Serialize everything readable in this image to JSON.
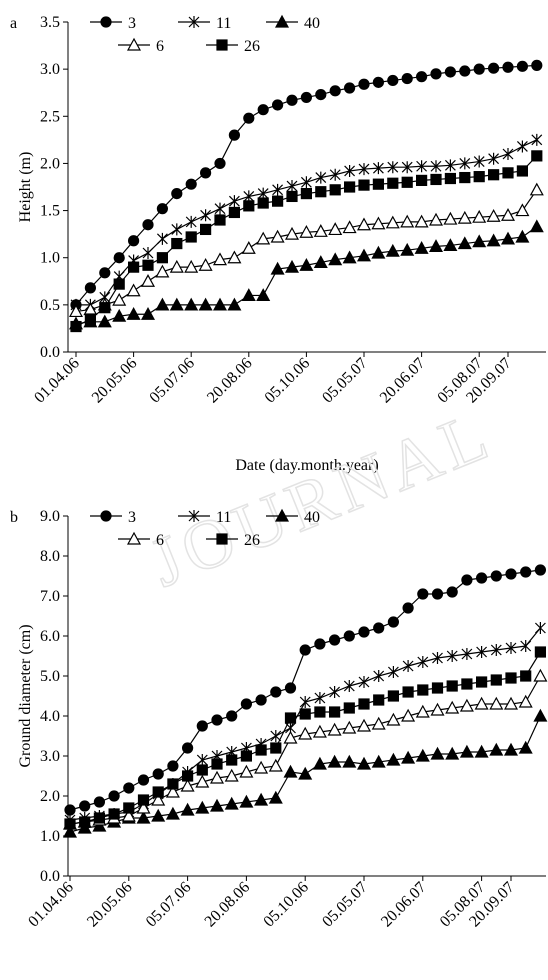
{
  "chart_data": [
    {
      "type": "line",
      "panel_label": "a",
      "x_label": "Date (day.month.year)",
      "y_label": "Height (m)",
      "categories": [
        "01.04.06",
        null,
        null,
        null,
        "20.05.06",
        null,
        null,
        null,
        "05.07.06",
        null,
        null,
        null,
        "20.08.06",
        null,
        null,
        null,
        "05.10.06",
        null,
        null,
        null,
        "05.05.07",
        null,
        null,
        null,
        "20.06.07",
        null,
        null,
        null,
        "05.08.07",
        null,
        "20.09.07",
        null,
        null
      ],
      "ylim": [
        0,
        3.5
      ],
      "yticks": [
        {
          "value": 0,
          "label": "0.0"
        },
        {
          "value": 0.5,
          "label": "0.5"
        },
        {
          "value": 1,
          "label": "1.0"
        },
        {
          "value": 1.5,
          "label": "1.5"
        },
        {
          "value": 2,
          "label": "2.0"
        },
        {
          "value": 2.5,
          "label": "2.5"
        },
        {
          "value": 3,
          "label": "3.0"
        },
        {
          "value": 3.5,
          "label": "3.5"
        }
      ],
      "series": [
        {
          "name": "3",
          "color": "#000000",
          "marker": "circle",
          "values": [
            0.5,
            0.68,
            0.84,
            1.0,
            1.18,
            1.35,
            1.52,
            1.68,
            1.78,
            1.9,
            2.0,
            2.3,
            2.48,
            2.57,
            2.62,
            2.67,
            2.7,
            2.73,
            2.77,
            2.8,
            2.84,
            2.86,
            2.88,
            2.9,
            2.92,
            2.95,
            2.97,
            2.98,
            3.0,
            3.01,
            3.02,
            3.03,
            3.04
          ]
        },
        {
          "name": "11",
          "color": "#000000",
          "marker": "star",
          "values": [
            0.5,
            0.5,
            0.58,
            0.8,
            0.97,
            1.05,
            1.2,
            1.3,
            1.38,
            1.45,
            1.52,
            1.6,
            1.65,
            1.68,
            1.72,
            1.76,
            1.8,
            1.85,
            1.88,
            1.92,
            1.94,
            1.95,
            1.96,
            1.96,
            1.97,
            1.97,
            1.98,
            2.0,
            2.02,
            2.05,
            2.1,
            2.18,
            2.25
          ]
        },
        {
          "name": "40",
          "color": "#000000",
          "marker": "triangle",
          "values": [
            0.3,
            0.32,
            0.32,
            0.38,
            0.4,
            0.4,
            0.5,
            0.5,
            0.5,
            0.5,
            0.5,
            0.5,
            0.6,
            0.6,
            0.88,
            0.9,
            0.92,
            0.95,
            0.98,
            1.0,
            1.02,
            1.05,
            1.07,
            1.08,
            1.1,
            1.12,
            1.13,
            1.15,
            1.17,
            1.18,
            1.2,
            1.22,
            1.33
          ]
        },
        {
          "name": "6",
          "color": "#000000",
          "marker": "open-triangle",
          "values": [
            0.43,
            0.45,
            0.5,
            0.55,
            0.65,
            0.75,
            0.85,
            0.9,
            0.9,
            0.92,
            0.98,
            1.0,
            1.1,
            1.2,
            1.22,
            1.25,
            1.27,
            1.28,
            1.3,
            1.32,
            1.35,
            1.36,
            1.37,
            1.38,
            1.38,
            1.4,
            1.41,
            1.42,
            1.43,
            1.44,
            1.45,
            1.5,
            1.72
          ]
        },
        {
          "name": "26",
          "color": "#000000",
          "marker": "square",
          "values": [
            0.27,
            0.35,
            0.47,
            0.72,
            0.9,
            0.92,
            1.0,
            1.15,
            1.22,
            1.3,
            1.4,
            1.48,
            1.55,
            1.58,
            1.6,
            1.65,
            1.68,
            1.7,
            1.72,
            1.75,
            1.77,
            1.78,
            1.79,
            1.8,
            1.82,
            1.83,
            1.84,
            1.85,
            1.86,
            1.88,
            1.9,
            1.92,
            2.08
          ]
        }
      ]
    },
    {
      "type": "line",
      "panel_label": "b",
      "x_label": "Date (day.month.year)",
      "y_label": "Ground diameter (cm)",
      "watermark": "JOURNAL",
      "categories": [
        "01.04.06",
        null,
        null,
        null,
        "20.05.06",
        null,
        null,
        null,
        "05.07.06",
        null,
        null,
        null,
        "20.08.06",
        null,
        null,
        null,
        "05.10.06",
        null,
        null,
        null,
        "05.05.07",
        null,
        null,
        null,
        "20.06.07",
        null,
        null,
        null,
        "05.08.07",
        null,
        "20.09.07",
        null,
        null
      ],
      "ylim": [
        0,
        9
      ],
      "yticks": [
        {
          "value": 0,
          "label": "0.0"
        },
        {
          "value": 1,
          "label": "1.0"
        },
        {
          "value": 2,
          "label": "2.0"
        },
        {
          "value": 3,
          "label": "3.0"
        },
        {
          "value": 4,
          "label": "4.0"
        },
        {
          "value": 5,
          "label": "5.0"
        },
        {
          "value": 6,
          "label": "6.0"
        },
        {
          "value": 7,
          "label": "7.0"
        },
        {
          "value": 8,
          "label": "8.0"
        },
        {
          "value": 9,
          "label": "9.0"
        }
      ],
      "series": [
        {
          "name": "3",
          "color": "#000000",
          "marker": "circle",
          "values": [
            1.65,
            1.75,
            1.85,
            2.0,
            2.2,
            2.4,
            2.55,
            2.75,
            3.2,
            3.75,
            3.9,
            4.0,
            4.3,
            4.4,
            4.6,
            4.7,
            5.65,
            5.8,
            5.9,
            6.0,
            6.1,
            6.2,
            6.35,
            6.7,
            7.05,
            7.05,
            7.1,
            7.4,
            7.45,
            7.5,
            7.55,
            7.6,
            7.65
          ]
        },
        {
          "name": "11",
          "color": "#000000",
          "marker": "star",
          "values": [
            1.4,
            1.45,
            1.5,
            1.55,
            1.6,
            1.8,
            2.05,
            2.3,
            2.6,
            2.9,
            3.0,
            3.1,
            3.2,
            3.3,
            3.5,
            3.7,
            4.35,
            4.45,
            4.6,
            4.75,
            4.85,
            5.0,
            5.1,
            5.25,
            5.35,
            5.45,
            5.5,
            5.55,
            5.6,
            5.65,
            5.7,
            5.75,
            6.2
          ]
        },
        {
          "name": "40",
          "color": "#000000",
          "marker": "triangle",
          "values": [
            1.1,
            1.2,
            1.25,
            1.35,
            1.45,
            1.45,
            1.5,
            1.55,
            1.65,
            1.7,
            1.75,
            1.8,
            1.85,
            1.9,
            1.95,
            2.6,
            2.55,
            2.8,
            2.85,
            2.85,
            2.8,
            2.85,
            2.9,
            2.95,
            3.0,
            3.05,
            3.05,
            3.1,
            3.1,
            3.15,
            3.15,
            3.2,
            4.0
          ]
        },
        {
          "name": "6",
          "color": "#000000",
          "marker": "open-triangle",
          "values": [
            1.3,
            1.35,
            1.4,
            1.45,
            1.5,
            1.7,
            1.9,
            2.1,
            2.25,
            2.35,
            2.45,
            2.5,
            2.6,
            2.7,
            2.75,
            3.45,
            3.55,
            3.6,
            3.65,
            3.7,
            3.75,
            3.8,
            3.9,
            4.0,
            4.1,
            4.15,
            4.2,
            4.25,
            4.3,
            4.3,
            4.3,
            4.35,
            5.0
          ]
        },
        {
          "name": "26",
          "color": "#000000",
          "marker": "square",
          "values": [
            1.3,
            1.35,
            1.45,
            1.55,
            1.7,
            1.9,
            2.1,
            2.3,
            2.5,
            2.65,
            2.8,
            2.9,
            3.0,
            3.15,
            3.2,
            3.95,
            4.05,
            4.1,
            4.1,
            4.2,
            4.3,
            4.4,
            4.5,
            4.6,
            4.65,
            4.7,
            4.75,
            4.8,
            4.85,
            4.9,
            4.95,
            5.0,
            5.6
          ]
        }
      ]
    }
  ]
}
